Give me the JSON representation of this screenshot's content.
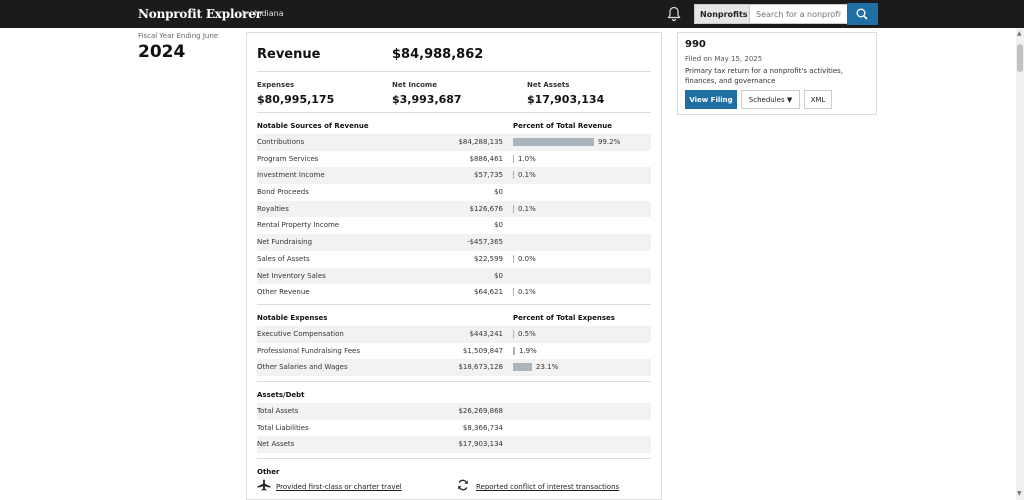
{
  "nav": {
    "brand": "Nonprofit Explorer",
    "separator": ">",
    "breadcrumb": "Indiana",
    "search_scope": "Nonprofits",
    "search_placeholder": "Search for a nonprofit"
  },
  "fiscal": {
    "label": "Fiscal Year Ending June",
    "year": "2024"
  },
  "summary": {
    "revenue_label": "Revenue",
    "revenue_value": "$84,988,862",
    "expenses_label": "Expenses",
    "expenses_value": "$80,995,175",
    "net_income_label": "Net Income",
    "net_income_value": "$3,993,687",
    "net_assets_label": "Net Assets",
    "net_assets_value": "$17,903,134"
  },
  "revenue_sources": {
    "title": "Notable Sources of Revenue",
    "pct_title": "Percent of Total Revenue",
    "rows": [
      {
        "name": "Contributions",
        "amount": "$84,288,135",
        "pct": "99.2%",
        "fraction": 0.992
      },
      {
        "name": "Program Services",
        "amount": "$886,461",
        "pct": "1.0%",
        "fraction": 0.01
      },
      {
        "name": "Investment Income",
        "amount": "$57,735",
        "pct": "0.1%",
        "fraction": 0.001
      },
      {
        "name": "Bond Proceeds",
        "amount": "$0",
        "pct": "",
        "fraction": 0
      },
      {
        "name": "Royalties",
        "amount": "$126,676",
        "pct": "0.1%",
        "fraction": 0.001
      },
      {
        "name": "Rental Property Income",
        "amount": "$0",
        "pct": "",
        "fraction": 0
      },
      {
        "name": "Net Fundraising",
        "amount": "-$457,365",
        "pct": "",
        "fraction": 0
      },
      {
        "name": "Sales of Assets",
        "amount": "$22,599",
        "pct": "0.0%",
        "fraction": 0.0003
      },
      {
        "name": "Net Inventory Sales",
        "amount": "$0",
        "pct": "",
        "fraction": 0
      },
      {
        "name": "Other Revenue",
        "amount": "$64,621",
        "pct": "0.1%",
        "fraction": 0.001
      }
    ]
  },
  "expenses": {
    "title": "Notable Expenses",
    "pct_title": "Percent of Total Expenses",
    "rows": [
      {
        "name": "Executive Compensation",
        "amount": "$443,241",
        "pct": "0.5%",
        "fraction": 0.005
      },
      {
        "name": "Professional Fundraising Fees",
        "amount": "$1,509,847",
        "pct": "1.9%",
        "fraction": 0.019
      },
      {
        "name": "Other Salaries and Wages",
        "amount": "$18,673,128",
        "pct": "23.1%",
        "fraction": 0.231
      }
    ]
  },
  "assets_debt": {
    "title": "Assets/Debt",
    "rows": [
      {
        "name": "Total Assets",
        "amount": "$26,269,868"
      },
      {
        "name": "Total Liabilities",
        "amount": "$8,366,734"
      },
      {
        "name": "Net Assets",
        "amount": "$17,903,134"
      }
    ]
  },
  "other": {
    "title": "Other",
    "travel_link": "Provided first-class or charter travel",
    "conflict_link": "Reported conflict of interest transactions"
  },
  "filing": {
    "form": "990",
    "filed_on": "Filed on May 15, 2025",
    "description": "Primary tax return for a nonprofit's activities, finances, and governance",
    "view_label": "View Filing",
    "schedules_label": "Schedules ▼",
    "xml_label": "XML"
  },
  "colors": {
    "accent": "#1f6fa5",
    "bar": "#a9b4bd",
    "nav_bg": "#1b1b1b"
  }
}
